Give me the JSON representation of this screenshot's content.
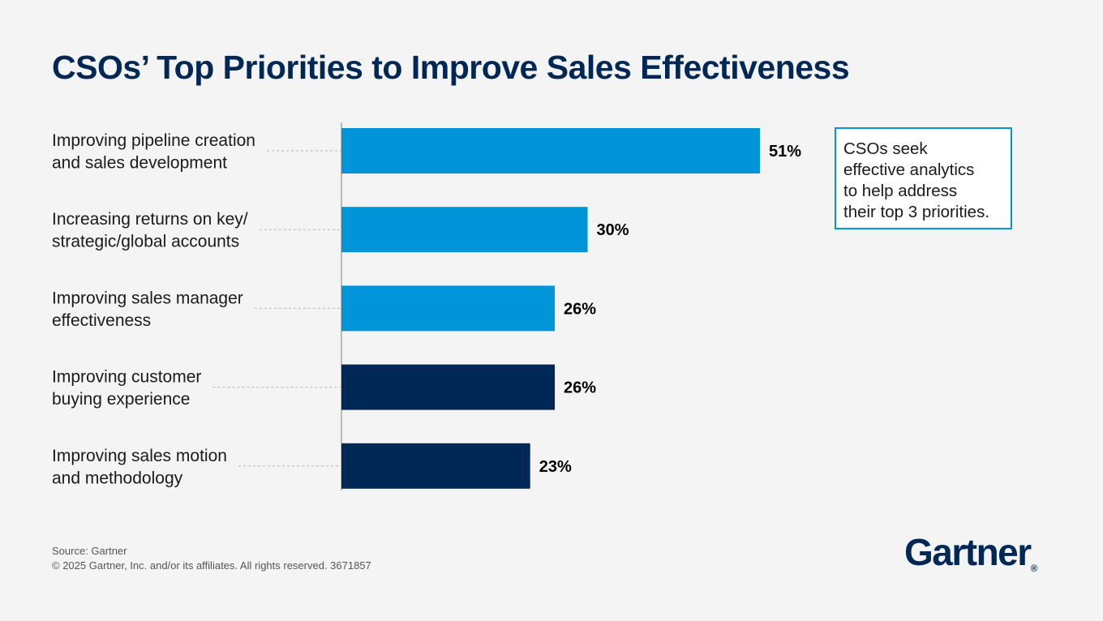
{
  "title": "CSOs’ Top Priorities to Improve Sales Effectiveness",
  "chart_data": {
    "type": "bar",
    "orientation": "horizontal",
    "title": "CSOs’ Top Priorities to Improve Sales Effectiveness",
    "categories": [
      [
        "Improving pipeline creation",
        "and sales development"
      ],
      [
        "Increasing returns on key/",
        "strategic/global accounts"
      ],
      [
        "Improving sales manager",
        "effectiveness"
      ],
      [
        "Improving customer",
        "buying experience"
      ],
      [
        "Improving sales motion",
        "and methodology"
      ]
    ],
    "values": [
      51,
      30,
      26,
      26,
      23
    ],
    "value_labels": [
      "51%",
      "30%",
      "26%",
      "26%",
      "23%"
    ],
    "bar_colors": [
      "#0095d9",
      "#0095d9",
      "#0095d9",
      "#002856",
      "#002856"
    ],
    "xlim": [
      0,
      100
    ],
    "grid": false,
    "legend": "none"
  },
  "callout": {
    "text": "CSOs seek\neffective analytics\nto help address\ntheir top 3 priorities."
  },
  "footer": {
    "source": "Source: Gartner",
    "copyright": "© 2025 Gartner, Inc. and/or its affiliates. All rights reserved. 3671857"
  },
  "logo": {
    "text": "Gartner",
    "mark": "®"
  },
  "colors": {
    "light_blue": "#0095d9",
    "dark_navy": "#002856",
    "background": "#f4f4f4"
  }
}
